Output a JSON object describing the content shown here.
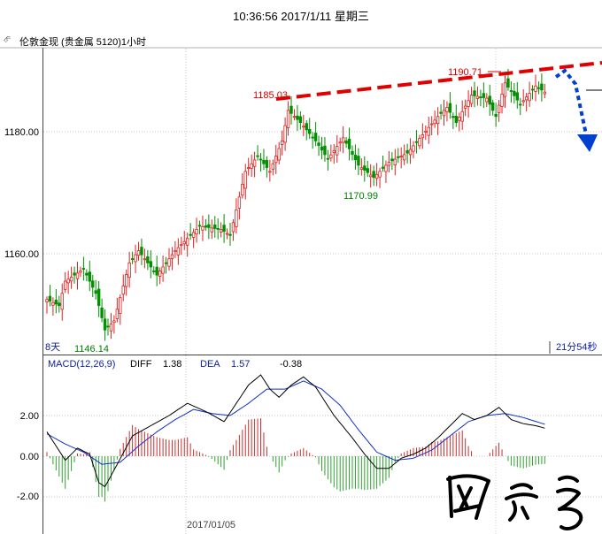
{
  "header": {
    "datetime": "10:36:56 2017/1/11 星期三"
  },
  "symbol_bar": {
    "title": "伦敦金现 (贵金属 5120)1小时",
    "icon": "chain-link-icon"
  },
  "chart_data": [
    {
      "type": "candlestick",
      "panel": "price",
      "y_ticks": [
        "1180.00",
        "1160.00"
      ],
      "ylim": [
        1143.5,
        1192.5
      ],
      "annotations": [
        {
          "text": "1185.03",
          "value": 1185.03,
          "color": "#d40000"
        },
        {
          "text": "1190.71",
          "value": 1190.71,
          "color": "#d40000"
        },
        {
          "text": "1170.99",
          "value": 1170.99,
          "color": "#008000"
        },
        {
          "text": "1146.14",
          "value": 1146.14,
          "color": "#008000"
        }
      ],
      "corner_labels": {
        "left": "8天",
        "right": "21分54秒"
      },
      "colors": {
        "up": "#e02020",
        "down": "#009000",
        "trendline": "#e00000",
        "projection": "#0040d0",
        "grid": "#c8c8c8"
      },
      "anchors": [
        {
          "i": 0,
          "v": 1152.5
        },
        {
          "i": 4,
          "v": 1151.5
        },
        {
          "i": 6,
          "v": 1155.5
        },
        {
          "i": 12,
          "v": 1157.5
        },
        {
          "i": 16,
          "v": 1153.5
        },
        {
          "i": 19,
          "v": 1147.5
        },
        {
          "i": 22,
          "v": 1149.0
        },
        {
          "i": 27,
          "v": 1158.5
        },
        {
          "i": 30,
          "v": 1160.5
        },
        {
          "i": 36,
          "v": 1156.5
        },
        {
          "i": 42,
          "v": 1160.5
        },
        {
          "i": 50,
          "v": 1164.5
        },
        {
          "i": 57,
          "v": 1164.0
        },
        {
          "i": 60,
          "v": 1163.0
        },
        {
          "i": 65,
          "v": 1173.5
        },
        {
          "i": 69,
          "v": 1176.0
        },
        {
          "i": 73,
          "v": 1173.5
        },
        {
          "i": 77,
          "v": 1178.5
        },
        {
          "i": 79,
          "v": 1183.5
        },
        {
          "i": 83,
          "v": 1181.5
        },
        {
          "i": 88,
          "v": 1178.5
        },
        {
          "i": 92,
          "v": 1175.5
        },
        {
          "i": 97,
          "v": 1179.0
        },
        {
          "i": 102,
          "v": 1174.5
        },
        {
          "i": 107,
          "v": 1172.5
        },
        {
          "i": 112,
          "v": 1175.0
        },
        {
          "i": 118,
          "v": 1176.5
        },
        {
          "i": 123,
          "v": 1179.5
        },
        {
          "i": 128,
          "v": 1182.5
        },
        {
          "i": 131,
          "v": 1184.0
        },
        {
          "i": 134,
          "v": 1181.5
        },
        {
          "i": 139,
          "v": 1186.0
        },
        {
          "i": 144,
          "v": 1185.5
        },
        {
          "i": 147,
          "v": 1182.5
        },
        {
          "i": 150,
          "v": 1188.0
        },
        {
          "i": 155,
          "v": 1184.5
        },
        {
          "i": 160,
          "v": 1187.5
        },
        {
          "i": 163,
          "v": 1186.5
        }
      ]
    },
    {
      "type": "macd",
      "panel": "indicator",
      "legend": {
        "name": "MACD(12,26,9)",
        "diff_label": "DIFF",
        "diff_value": "1.38",
        "dea_label": "DEA",
        "dea_value": "1.57",
        "macd_value": "-0.38"
      },
      "y_ticks": [
        "2.00",
        "0.00",
        "-2.00"
      ],
      "ylim": [
        -2.6,
        4.0
      ],
      "x_label": "2017/01/05",
      "colors": {
        "diff": "#000000",
        "dea": "#1030c8",
        "hist_pos": "#c83030",
        "hist_neg": "#30a030"
      },
      "diff_anchors": [
        {
          "i": 0,
          "v": 1.2
        },
        {
          "i": 6,
          "v": -0.2
        },
        {
          "i": 10,
          "v": 0.4
        },
        {
          "i": 14,
          "v": 0.1
        },
        {
          "i": 17,
          "v": -1.3
        },
        {
          "i": 19,
          "v": -1.5
        },
        {
          "i": 23,
          "v": -0.4
        },
        {
          "i": 28,
          "v": 1.0
        },
        {
          "i": 34,
          "v": 1.5
        },
        {
          "i": 40,
          "v": 2.0
        },
        {
          "i": 46,
          "v": 2.6
        },
        {
          "i": 52,
          "v": 2.2
        },
        {
          "i": 58,
          "v": 1.7
        },
        {
          "i": 62,
          "v": 2.6
        },
        {
          "i": 66,
          "v": 3.5
        },
        {
          "i": 70,
          "v": 4.0
        },
        {
          "i": 73,
          "v": 3.3
        },
        {
          "i": 76,
          "v": 2.9
        },
        {
          "i": 80,
          "v": 3.5
        },
        {
          "i": 84,
          "v": 3.9
        },
        {
          "i": 88,
          "v": 3.4
        },
        {
          "i": 94,
          "v": 2.0
        },
        {
          "i": 100,
          "v": 0.9
        },
        {
          "i": 104,
          "v": 0.1
        },
        {
          "i": 108,
          "v": -0.6
        },
        {
          "i": 112,
          "v": -0.6
        },
        {
          "i": 116,
          "v": -0.1
        },
        {
          "i": 120,
          "v": 0.1
        },
        {
          "i": 124,
          "v": 0.4
        },
        {
          "i": 128,
          "v": 0.9
        },
        {
          "i": 132,
          "v": 1.5
        },
        {
          "i": 136,
          "v": 2.1
        },
        {
          "i": 140,
          "v": 1.8
        },
        {
          "i": 144,
          "v": 2.0
        },
        {
          "i": 148,
          "v": 2.4
        },
        {
          "i": 152,
          "v": 1.8
        },
        {
          "i": 156,
          "v": 1.6
        },
        {
          "i": 160,
          "v": 1.5
        },
        {
          "i": 163,
          "v": 1.38
        }
      ],
      "dea_anchors": [
        {
          "i": 0,
          "v": 1.1
        },
        {
          "i": 6,
          "v": 0.6
        },
        {
          "i": 12,
          "v": 0.2
        },
        {
          "i": 18,
          "v": -0.4
        },
        {
          "i": 24,
          "v": -0.3
        },
        {
          "i": 30,
          "v": 0.5
        },
        {
          "i": 36,
          "v": 1.2
        },
        {
          "i": 42,
          "v": 1.8
        },
        {
          "i": 48,
          "v": 2.3
        },
        {
          "i": 54,
          "v": 2.1
        },
        {
          "i": 60,
          "v": 2.0
        },
        {
          "i": 66,
          "v": 2.6
        },
        {
          "i": 72,
          "v": 3.3
        },
        {
          "i": 78,
          "v": 3.3
        },
        {
          "i": 84,
          "v": 3.7
        },
        {
          "i": 90,
          "v": 3.3
        },
        {
          "i": 96,
          "v": 2.5
        },
        {
          "i": 102,
          "v": 1.3
        },
        {
          "i": 108,
          "v": 0.2
        },
        {
          "i": 114,
          "v": -0.2
        },
        {
          "i": 120,
          "v": -0.1
        },
        {
          "i": 126,
          "v": 0.3
        },
        {
          "i": 132,
          "v": 1.0
        },
        {
          "i": 138,
          "v": 1.7
        },
        {
          "i": 144,
          "v": 2.0
        },
        {
          "i": 150,
          "v": 2.1
        },
        {
          "i": 156,
          "v": 1.9
        },
        {
          "i": 163,
          "v": 1.57
        }
      ]
    }
  ]
}
